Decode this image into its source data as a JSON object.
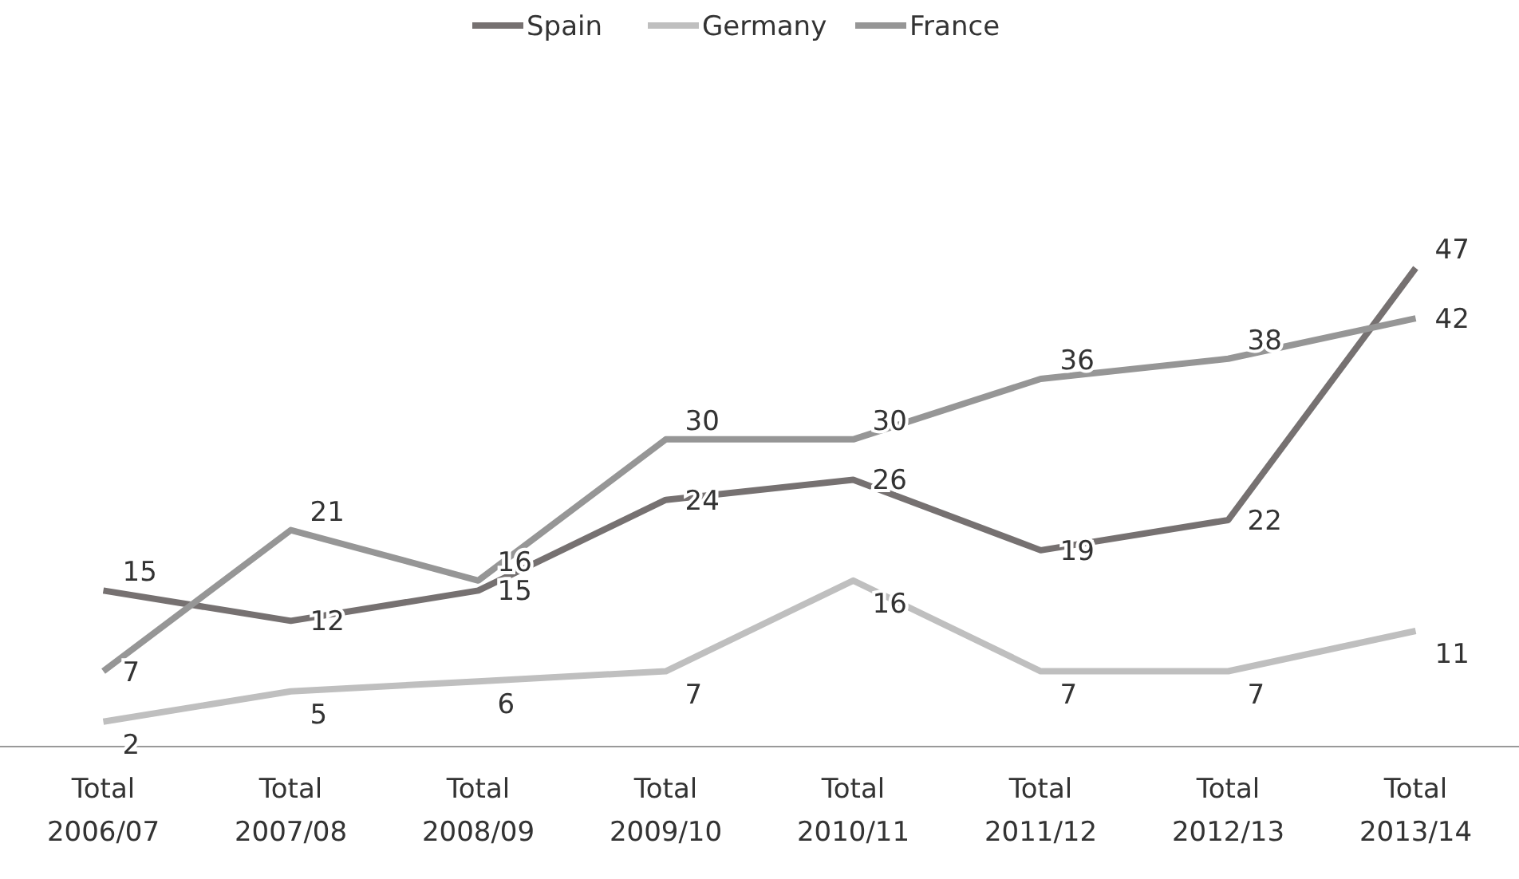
{
  "chart_data": {
    "type": "line",
    "categories": [
      "Total 2006/07",
      "Total 2007/08",
      "Total 2008/09",
      "Total 2009/10",
      "Total 2010/11",
      "Total 2011/12",
      "Total 2012/13",
      "Total 2013/14"
    ],
    "data_labels": true,
    "legend": "top",
    "marker": "none",
    "line_style": "solid",
    "series": [
      {
        "name": "Spain",
        "color": "#767171",
        "values": [
          15,
          12,
          15,
          24,
          26,
          19,
          22,
          47
        ]
      },
      {
        "name": "Germany",
        "color": "#bfbfbf",
        "values": [
          2,
          5,
          6,
          7,
          16,
          7,
          7,
          11
        ]
      },
      {
        "name": "France",
        "color": "#969696",
        "values": [
          7,
          21,
          16,
          30,
          30,
          36,
          38,
          42
        ]
      }
    ]
  }
}
